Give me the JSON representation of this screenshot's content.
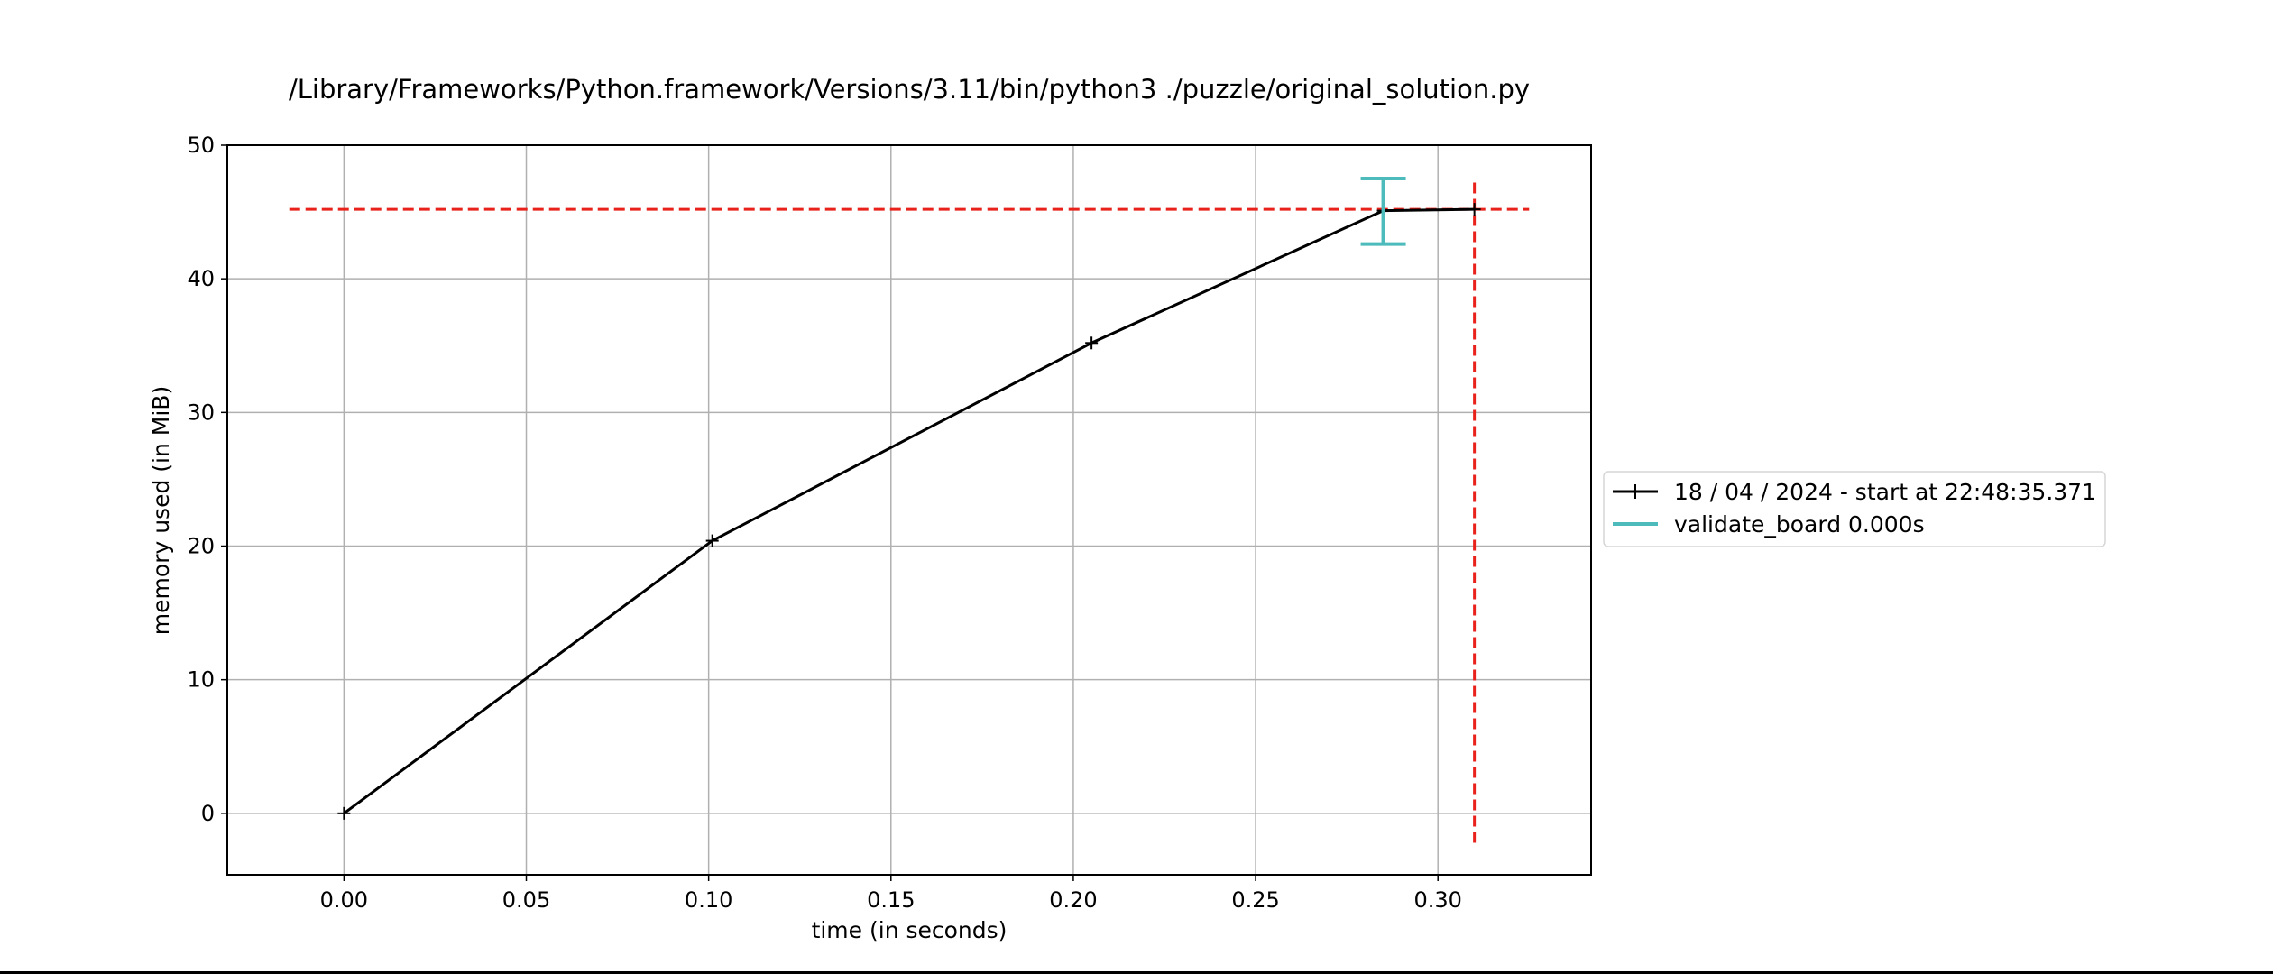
{
  "chart_data": {
    "type": "line",
    "title": "/Library/Frameworks/Python.framework/Versions/3.11/bin/python3 ./puzzle/original_solution.py",
    "xlabel": "time (in seconds)",
    "ylabel": "memory used (in MiB)",
    "xlim": [
      -0.032,
      0.342
    ],
    "ylim": [
      -4.6,
      50
    ],
    "x_ticks": [
      0.0,
      0.05,
      0.1,
      0.15,
      0.2,
      0.25,
      0.3
    ],
    "x_tick_labels": [
      "0.00",
      "0.05",
      "0.10",
      "0.15",
      "0.20",
      "0.25",
      "0.30"
    ],
    "y_ticks": [
      0,
      10,
      20,
      30,
      40,
      50
    ],
    "y_tick_labels": [
      "0",
      "10",
      "20",
      "30",
      "40",
      "50"
    ],
    "grid": true,
    "legend_position": "right",
    "series": [
      {
        "name": "18 / 04 / 2024 - start at 22:48:35.371",
        "color": "#000000",
        "marker": "plus",
        "x": [
          0.0,
          0.101,
          0.205,
          0.285,
          0.31
        ],
        "y": [
          0.0,
          20.4,
          35.2,
          45.1,
          45.2
        ]
      }
    ],
    "function_markers": [
      {
        "name": "validate_board 0.000s",
        "color": "#4dbbbb",
        "x": 0.285,
        "y_low": 42.6,
        "y_high": 47.5
      }
    ],
    "reference_lines": {
      "color": "#e8211b",
      "style": "dashed",
      "horizontal": {
        "y": 45.2,
        "x_from": -0.015,
        "x_to": 0.325
      },
      "vertical": {
        "x": 0.31,
        "y_from": -2.2,
        "y_to": 47.2
      }
    }
  }
}
